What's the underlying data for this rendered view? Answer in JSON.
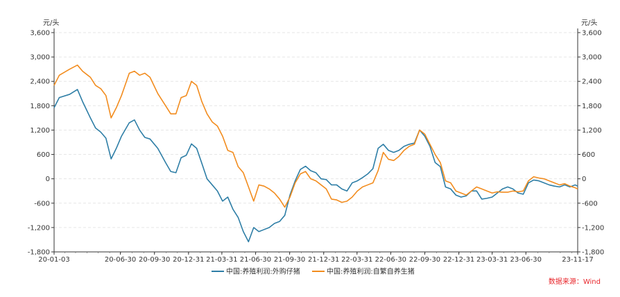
{
  "chart_data": {
    "type": "line",
    "y_unit_left": "元/头",
    "y_unit_right": "元/头",
    "ylim": [
      -1800,
      3600
    ],
    "yticks": [
      -1800,
      -1200,
      -600,
      0,
      600,
      1200,
      1800,
      2400,
      3000,
      3600
    ],
    "ytick_labels": [
      "-1,800",
      "-1,200",
      "-600",
      "0",
      "600",
      "1,200",
      "1,800",
      "2,400",
      "3,000",
      "3,600"
    ],
    "xlim": [
      "2020-01-03",
      "2023-11-17"
    ],
    "xticks": [
      "2020-01-03",
      "2020-06-30",
      "2020-09-30",
      "2020-12-31",
      "2021-03-31",
      "2021-06-30",
      "2021-09-30",
      "2021-12-31",
      "2022-03-31",
      "2022-06-30",
      "2022-09-30",
      "2022-12-31",
      "2023-03-31",
      "2023-06-30",
      "2023-11-17"
    ],
    "xtick_labels": [
      "20-01-03",
      "20-06-30",
      "20-09-30",
      "20-12-31",
      "21-03-31",
      "21-06-30",
      "21-09-30",
      "21-12-31",
      "22-03-31",
      "22-06-30",
      "22-09-30",
      "22-12-31",
      "23-03-31",
      "23-06-30",
      "23-11-17"
    ],
    "grid": true,
    "legend_position": "bottom",
    "series": [
      {
        "name": "中国:养殖利润:外购仔猪",
        "color": "#2e7ea6",
        "points": [
          [
            "2020-01-03",
            1750
          ],
          [
            "2020-01-17",
            2000
          ],
          [
            "2020-02-14",
            2080
          ],
          [
            "2020-03-06",
            2200
          ],
          [
            "2020-03-20",
            1900
          ],
          [
            "2020-04-10",
            1500
          ],
          [
            "2020-04-24",
            1250
          ],
          [
            "2020-05-08",
            1150
          ],
          [
            "2020-05-22",
            1000
          ],
          [
            "2020-06-05",
            490
          ],
          [
            "2020-06-19",
            750
          ],
          [
            "2020-07-03",
            1050
          ],
          [
            "2020-07-24",
            1380
          ],
          [
            "2020-08-07",
            1450
          ],
          [
            "2020-08-21",
            1200
          ],
          [
            "2020-09-04",
            1020
          ],
          [
            "2020-09-18",
            980
          ],
          [
            "2020-10-09",
            750
          ],
          [
            "2020-10-30",
            400
          ],
          [
            "2020-11-13",
            180
          ],
          [
            "2020-11-27",
            150
          ],
          [
            "2020-12-11",
            520
          ],
          [
            "2020-12-25",
            580
          ],
          [
            "2021-01-08",
            860
          ],
          [
            "2021-01-22",
            750
          ],
          [
            "2021-02-05",
            380
          ],
          [
            "2021-02-19",
            0
          ],
          [
            "2021-03-05",
            -150
          ],
          [
            "2021-03-19",
            -300
          ],
          [
            "2021-04-02",
            -550
          ],
          [
            "2021-04-16",
            -450
          ],
          [
            "2021-04-30",
            -750
          ],
          [
            "2021-05-14",
            -950
          ],
          [
            "2021-05-28",
            -1300
          ],
          [
            "2021-06-11",
            -1550
          ],
          [
            "2021-06-25",
            -1200
          ],
          [
            "2021-07-09",
            -1300
          ],
          [
            "2021-07-23",
            -1250
          ],
          [
            "2021-08-06",
            -1200
          ],
          [
            "2021-08-20",
            -1100
          ],
          [
            "2021-09-03",
            -1050
          ],
          [
            "2021-09-17",
            -900
          ],
          [
            "2021-10-01",
            -400
          ],
          [
            "2021-10-15",
            -50
          ],
          [
            "2021-10-29",
            230
          ],
          [
            "2021-11-12",
            310
          ],
          [
            "2021-11-26",
            200
          ],
          [
            "2021-12-10",
            150
          ],
          [
            "2021-12-24",
            0
          ],
          [
            "2022-01-07",
            -20
          ],
          [
            "2022-01-21",
            -150
          ],
          [
            "2022-02-04",
            -150
          ],
          [
            "2022-02-18",
            -250
          ],
          [
            "2022-03-04",
            -300
          ],
          [
            "2022-03-18",
            -100
          ],
          [
            "2022-04-01",
            -50
          ],
          [
            "2022-04-15",
            30
          ],
          [
            "2022-04-29",
            120
          ],
          [
            "2022-05-13",
            250
          ],
          [
            "2022-05-27",
            750
          ],
          [
            "2022-06-10",
            850
          ],
          [
            "2022-06-24",
            700
          ],
          [
            "2022-07-08",
            650
          ],
          [
            "2022-07-22",
            700
          ],
          [
            "2022-08-05",
            800
          ],
          [
            "2022-08-19",
            850
          ],
          [
            "2022-09-02",
            880
          ],
          [
            "2022-09-16",
            1200
          ],
          [
            "2022-09-30",
            1050
          ],
          [
            "2022-10-14",
            800
          ],
          [
            "2022-10-28",
            400
          ],
          [
            "2022-11-11",
            300
          ],
          [
            "2022-11-25",
            -200
          ],
          [
            "2022-12-09",
            -250
          ],
          [
            "2022-12-23",
            -400
          ],
          [
            "2023-01-06",
            -450
          ],
          [
            "2023-01-20",
            -420
          ],
          [
            "2023-02-03",
            -300
          ],
          [
            "2023-02-17",
            -300
          ],
          [
            "2023-03-03",
            -500
          ],
          [
            "2023-03-17",
            -480
          ],
          [
            "2023-03-31",
            -450
          ],
          [
            "2023-04-14",
            -350
          ],
          [
            "2023-04-28",
            -250
          ],
          [
            "2023-05-12",
            -200
          ],
          [
            "2023-05-26",
            -250
          ],
          [
            "2023-06-09",
            -350
          ],
          [
            "2023-06-23",
            -380
          ],
          [
            "2023-07-07",
            -100
          ],
          [
            "2023-07-21",
            -30
          ],
          [
            "2023-08-04",
            -50
          ],
          [
            "2023-08-18",
            -100
          ],
          [
            "2023-09-01",
            -150
          ],
          [
            "2023-09-15",
            -180
          ],
          [
            "2023-09-29",
            -200
          ],
          [
            "2023-10-13",
            -150
          ],
          [
            "2023-10-27",
            -200
          ],
          [
            "2023-11-10",
            -150
          ],
          [
            "2023-11-17",
            -180
          ]
        ]
      },
      {
        "name": "中国:养殖利润:自繁自养生猪",
        "color": "#f28c1e",
        "points": [
          [
            "2020-01-03",
            2300
          ],
          [
            "2020-01-17",
            2550
          ],
          [
            "2020-02-14",
            2700
          ],
          [
            "2020-03-06",
            2800
          ],
          [
            "2020-03-20",
            2650
          ],
          [
            "2020-04-10",
            2500
          ],
          [
            "2020-04-24",
            2300
          ],
          [
            "2020-05-08",
            2220
          ],
          [
            "2020-05-22",
            2050
          ],
          [
            "2020-06-05",
            1500
          ],
          [
            "2020-06-19",
            1750
          ],
          [
            "2020-07-03",
            2050
          ],
          [
            "2020-07-24",
            2600
          ],
          [
            "2020-08-07",
            2650
          ],
          [
            "2020-08-21",
            2550
          ],
          [
            "2020-09-04",
            2600
          ],
          [
            "2020-09-18",
            2500
          ],
          [
            "2020-10-09",
            2100
          ],
          [
            "2020-10-30",
            1800
          ],
          [
            "2020-11-13",
            1600
          ],
          [
            "2020-11-27",
            1600
          ],
          [
            "2020-12-11",
            2000
          ],
          [
            "2020-12-25",
            2050
          ],
          [
            "2021-01-08",
            2400
          ],
          [
            "2021-01-22",
            2300
          ],
          [
            "2021-02-05",
            1900
          ],
          [
            "2021-02-19",
            1600
          ],
          [
            "2021-03-05",
            1400
          ],
          [
            "2021-03-19",
            1300
          ],
          [
            "2021-04-02",
            1050
          ],
          [
            "2021-04-16",
            700
          ],
          [
            "2021-04-30",
            650
          ],
          [
            "2021-05-14",
            300
          ],
          [
            "2021-05-28",
            150
          ],
          [
            "2021-06-11",
            -200
          ],
          [
            "2021-06-25",
            -550
          ],
          [
            "2021-07-09",
            -150
          ],
          [
            "2021-07-23",
            -180
          ],
          [
            "2021-08-06",
            -250
          ],
          [
            "2021-08-20",
            -350
          ],
          [
            "2021-09-03",
            -500
          ],
          [
            "2021-09-17",
            -700
          ],
          [
            "2021-10-01",
            -450
          ],
          [
            "2021-10-15",
            -100
          ],
          [
            "2021-10-29",
            120
          ],
          [
            "2021-11-12",
            180
          ],
          [
            "2021-11-26",
            0
          ],
          [
            "2021-12-10",
            -50
          ],
          [
            "2021-12-24",
            -150
          ],
          [
            "2022-01-07",
            -250
          ],
          [
            "2022-01-21",
            -500
          ],
          [
            "2022-02-04",
            -520
          ],
          [
            "2022-02-18",
            -580
          ],
          [
            "2022-03-04",
            -550
          ],
          [
            "2022-03-18",
            -450
          ],
          [
            "2022-04-01",
            -300
          ],
          [
            "2022-04-15",
            -200
          ],
          [
            "2022-04-29",
            -150
          ],
          [
            "2022-05-13",
            -100
          ],
          [
            "2022-05-27",
            200
          ],
          [
            "2022-06-10",
            650
          ],
          [
            "2022-06-24",
            480
          ],
          [
            "2022-07-08",
            450
          ],
          [
            "2022-07-22",
            550
          ],
          [
            "2022-08-05",
            700
          ],
          [
            "2022-08-19",
            800
          ],
          [
            "2022-09-02",
            850
          ],
          [
            "2022-09-16",
            1200
          ],
          [
            "2022-09-30",
            1100
          ],
          [
            "2022-10-14",
            850
          ],
          [
            "2022-10-28",
            600
          ],
          [
            "2022-11-11",
            400
          ],
          [
            "2022-11-25",
            -50
          ],
          [
            "2022-12-09",
            -100
          ],
          [
            "2022-12-23",
            -300
          ],
          [
            "2023-01-06",
            -350
          ],
          [
            "2023-01-20",
            -400
          ],
          [
            "2023-02-03",
            -300
          ],
          [
            "2023-02-17",
            -200
          ],
          [
            "2023-03-03",
            -250
          ],
          [
            "2023-03-17",
            -300
          ],
          [
            "2023-03-31",
            -350
          ],
          [
            "2023-04-14",
            -320
          ],
          [
            "2023-04-28",
            -330
          ],
          [
            "2023-05-12",
            -330
          ],
          [
            "2023-05-26",
            -300
          ],
          [
            "2023-06-09",
            -320
          ],
          [
            "2023-06-23",
            -300
          ],
          [
            "2023-07-07",
            -50
          ],
          [
            "2023-07-21",
            50
          ],
          [
            "2023-08-04",
            20
          ],
          [
            "2023-08-18",
            0
          ],
          [
            "2023-09-01",
            -50
          ],
          [
            "2023-09-15",
            -100
          ],
          [
            "2023-09-29",
            -150
          ],
          [
            "2023-10-13",
            -120
          ],
          [
            "2023-10-27",
            -180
          ],
          [
            "2023-11-10",
            -220
          ],
          [
            "2023-11-17",
            -250
          ]
        ]
      }
    ]
  },
  "source_text": "数据来源：Wind"
}
